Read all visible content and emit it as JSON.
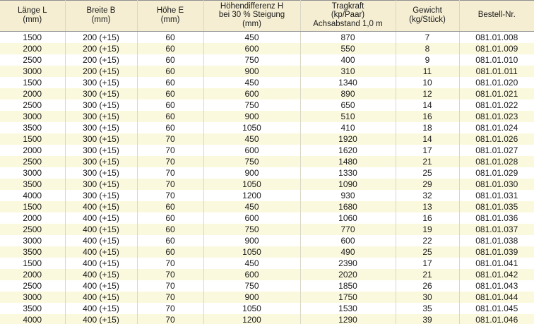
{
  "table": {
    "title": "product-spec-table",
    "colors": {
      "header_bg": "#f5eed3",
      "row_bg": "#ffffff",
      "row_alt_bg": "#fbf9dd",
      "grid_line": "#d8d6c6",
      "outer_border": "#8f8f8f",
      "text": "#1a1a1a"
    },
    "columns": [
      {
        "id": "laenge",
        "lines": [
          "Länge L",
          "(mm)"
        ]
      },
      {
        "id": "breite",
        "lines": [
          "Breite B",
          "(mm)"
        ]
      },
      {
        "id": "hoehe",
        "lines": [
          "Höhe E",
          "(mm)"
        ]
      },
      {
        "id": "hoehendifferenz",
        "lines": [
          "Höhendifferenz H",
          "bei 30 % Steigung",
          "(mm)"
        ]
      },
      {
        "id": "tragkraft",
        "lines": [
          "Tragkraft",
          "(kp/Paar)",
          "Achsabstand 1,0 m"
        ]
      },
      {
        "id": "gewicht",
        "lines": [
          "Gewicht",
          "(kg/Stück)"
        ]
      },
      {
        "id": "bestellnr",
        "lines": [
          "Bestell-Nr."
        ]
      }
    ],
    "rows": [
      [
        "1500",
        "200 (+15)",
        "60",
        "450",
        "870",
        "7",
        "081.01.008"
      ],
      [
        "2000",
        "200 (+15)",
        "60",
        "600",
        "550",
        "8",
        "081.01.009"
      ],
      [
        "2500",
        "200 (+15)",
        "60",
        "750",
        "400",
        "9",
        "081.01.010"
      ],
      [
        "3000",
        "200 (+15)",
        "60",
        "900",
        "310",
        "11",
        "081.01.011"
      ],
      [
        "1500",
        "300 (+15)",
        "60",
        "450",
        "1340",
        "10",
        "081.01.020"
      ],
      [
        "2000",
        "300 (+15)",
        "60",
        "600",
        "890",
        "12",
        "081.01.021"
      ],
      [
        "2500",
        "300 (+15)",
        "60",
        "750",
        "650",
        "14",
        "081.01.022"
      ],
      [
        "3000",
        "300 (+15)",
        "60",
        "900",
        "510",
        "16",
        "081.01.023"
      ],
      [
        "3500",
        "300 (+15)",
        "60",
        "1050",
        "410",
        "18",
        "081.01.024"
      ],
      [
        "1500",
        "300 (+15)",
        "70",
        "450",
        "1920",
        "14",
        "081.01.026"
      ],
      [
        "2000",
        "300 (+15)",
        "70",
        "600",
        "1620",
        "17",
        "081.01.027"
      ],
      [
        "2500",
        "300 (+15)",
        "70",
        "750",
        "1480",
        "21",
        "081.01.028"
      ],
      [
        "3000",
        "300 (+15)",
        "70",
        "900",
        "1330",
        "25",
        "081.01.029"
      ],
      [
        "3500",
        "300 (+15)",
        "70",
        "1050",
        "1090",
        "29",
        "081.01.030"
      ],
      [
        "4000",
        "300 (+15)",
        "70",
        "1200",
        "930",
        "32",
        "081.01.031"
      ],
      [
        "1500",
        "400 (+15)",
        "60",
        "450",
        "1680",
        "13",
        "081.01.035"
      ],
      [
        "2000",
        "400 (+15)",
        "60",
        "600",
        "1060",
        "16",
        "081.01.036"
      ],
      [
        "2500",
        "400 (+15)",
        "60",
        "750",
        "770",
        "19",
        "081.01.037"
      ],
      [
        "3000",
        "400 (+15)",
        "60",
        "900",
        "600",
        "22",
        "081.01.038"
      ],
      [
        "3500",
        "400 (+15)",
        "60",
        "1050",
        "490",
        "25",
        "081.01.039"
      ],
      [
        "1500",
        "400 (+15)",
        "70",
        "450",
        "2390",
        "17",
        "081.01.041"
      ],
      [
        "2000",
        "400 (+15)",
        "70",
        "600",
        "2020",
        "21",
        "081.01.042"
      ],
      [
        "2500",
        "400 (+15)",
        "70",
        "750",
        "1850",
        "26",
        "081.01.043"
      ],
      [
        "3000",
        "400 (+15)",
        "70",
        "900",
        "1750",
        "30",
        "081.01.044"
      ],
      [
        "3500",
        "400 (+15)",
        "70",
        "1050",
        "1530",
        "35",
        "081.01.045"
      ],
      [
        "4000",
        "400 (+15)",
        "70",
        "1200",
        "1290",
        "39",
        "081.01.046"
      ]
    ]
  }
}
